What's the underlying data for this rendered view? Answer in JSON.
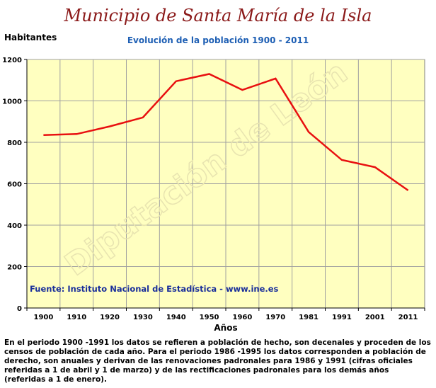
{
  "header": {
    "title": "Municipio de Santa María de la Isla",
    "subtitle": "Evolución de la población 1900 - 2011"
  },
  "chart_data": {
    "type": "line",
    "title": "Evolución de la población 1900 - 2011",
    "ylabel": "Habitantes",
    "xlabel": "Años",
    "categories": [
      "1900",
      "1910",
      "1920",
      "1930",
      "1940",
      "1950",
      "1960",
      "1970",
      "1981",
      "1991",
      "2001",
      "2011"
    ],
    "series": [
      {
        "name": "",
        "values": [
          835,
          840,
          877,
          920,
          1095,
          1130,
          1053,
          1108,
          850,
          715,
          680,
          568
        ],
        "color": "#e81010"
      }
    ],
    "ylim": [
      0,
      1200
    ],
    "yticks": [
      0,
      200,
      400,
      600,
      800,
      1000,
      1200
    ],
    "grid": true,
    "plot_background": "#ffffc0",
    "source_text": "Fuente: Instituto Nacional de Estadística - www.ine.es",
    "watermark": "Diputación de León"
  },
  "footnote": "En el periodo 1900 -1991 los datos se refieren a población de hecho, son decenales y proceden de los censos de población de cada año. Para el periodo 1986 -1995 los datos corresponden a población de derecho, son anuales y derivan de las renovaciones padronales para 1986 y 1991 (cifras oficiales referidas a 1 de abril y 1 de marzo) y de las rectificaciones padronales para los demás años (referidas a 1 de enero)."
}
